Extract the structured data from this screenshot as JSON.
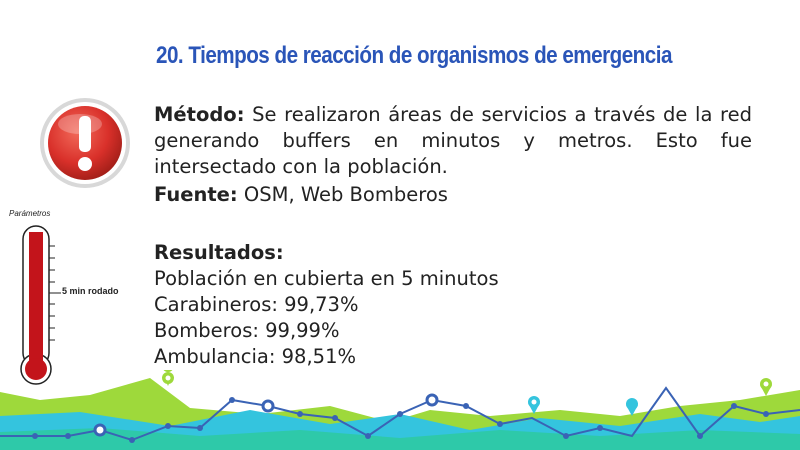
{
  "title_number": "20.",
  "title_text": "Tiempos de reacción de organismos de emergencia",
  "method": {
    "label": "Método:",
    "text": "Se realizaron áreas de servicios a través de la red generando buffers en minutos y metros. Esto fue intersectado con la población."
  },
  "source": {
    "label": "Fuente:",
    "text": "OSM, Web Bomberos"
  },
  "results": {
    "label": "Resultados:",
    "lines": [
      "Población en cubierta en 5 minutos",
      "Carabineros: 99,73%",
      "Bomberos: 99,99%",
      "Ambulancia: 98,51%"
    ]
  },
  "thermometer": {
    "label": "Parámetros",
    "marker": "5 min rodado"
  },
  "colors": {
    "title": "#2a55b8",
    "alert_red": "#d9302a",
    "thermo_red": "#c3141b",
    "green": "#9ed93b",
    "cyan": "#34c4de",
    "teal": "#2ec9a9",
    "line": "#3a63b5"
  },
  "icons": [
    "exclamation-alert-icon",
    "thermometer-icon",
    "location-pin-icon"
  ]
}
